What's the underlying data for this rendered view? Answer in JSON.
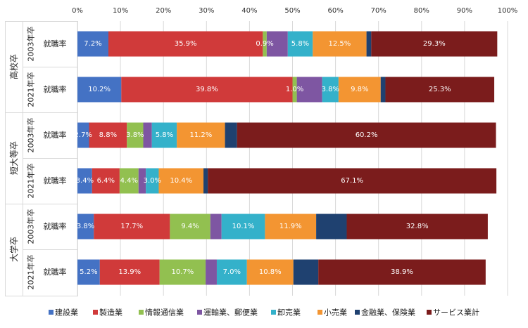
{
  "chart_data": {
    "type": "bar",
    "orientation": "horizontal",
    "stacked": true,
    "x_ticks": [
      "0%",
      "10%",
      "20%",
      "30%",
      "40%",
      "50%",
      "60%",
      "70%",
      "80%",
      "90%",
      "100%"
    ],
    "xlim": [
      0,
      100
    ],
    "grid": true,
    "legend_position": "bottom",
    "groups": [
      {
        "label": "高校卒",
        "rows": [
          {
            "year": "2003年卒",
            "label": "就職率",
            "values": [
              7.2,
              35.9,
              0.9,
              4.9,
              5.8,
              12.5,
              1.1,
              29.3
            ]
          },
          {
            "year": "2021年卒",
            "label": "就職率",
            "values": [
              10.2,
              39.8,
              1.0,
              5.9,
              3.8,
              9.8,
              1.1,
              25.3
            ]
          }
        ]
      },
      {
        "label": "短大等卒",
        "rows": [
          {
            "year": "2003年卒",
            "label": "就職率",
            "values": [
              2.7,
              8.8,
              3.8,
              2.0,
              5.8,
              11.2,
              2.8,
              60.2
            ]
          },
          {
            "year": "2021年卒",
            "label": "就職率",
            "values": [
              3.4,
              6.4,
              4.4,
              1.7,
              3.0,
              10.4,
              1.0,
              67.1
            ]
          }
        ]
      },
      {
        "label": "大学卒",
        "rows": [
          {
            "year": "2003年卒",
            "label": "就職率",
            "values": [
              3.8,
              17.7,
              9.4,
              2.6,
              10.1,
              11.9,
              7.1,
              32.8
            ]
          },
          {
            "year": "2021年卒",
            "label": "就職率",
            "values": [
              5.2,
              13.9,
              10.7,
              2.6,
              7.0,
              10.8,
              5.8,
              38.9
            ]
          }
        ]
      }
    ],
    "data_labels": [
      [
        [
          "7.2%",
          "35.9%",
          "0.9%",
          "",
          "5.8%",
          "12.5%",
          "",
          "29.3%"
        ],
        [
          "10.2%",
          "39.8%",
          "1.0%",
          "",
          "3.8%",
          "9.8%",
          "",
          "25.3%"
        ]
      ],
      [
        [
          "2.7%",
          "8.8%",
          "3.8%",
          "",
          "5.8%",
          "11.2%",
          "",
          "60.2%"
        ],
        [
          "3.4%",
          "6.4%",
          "4.4%",
          "",
          "3.0%",
          "10.4%",
          "",
          "67.1%"
        ]
      ],
      [
        [
          "3.8%",
          "17.7%",
          "9.4%",
          "",
          "10.1%",
          "11.9%",
          "",
          "32.8%"
        ],
        [
          "5.2%",
          "13.9%",
          "10.7%",
          "",
          "7.0%",
          "10.8%",
          "",
          "38.9%"
        ]
      ]
    ],
    "series": [
      {
        "name": "建設業",
        "color": "#4472C4"
      },
      {
        "name": "製造業",
        "color": "#D03A3A"
      },
      {
        "name": "情報通信業",
        "color": "#92C050"
      },
      {
        "name": "運輸業、郵便業",
        "color": "#7E56A2"
      },
      {
        "name": "卸売業",
        "color": "#34B1CA"
      },
      {
        "name": "小売業",
        "color": "#F39532"
      },
      {
        "name": "金融業、保険業",
        "color": "#1F4170"
      },
      {
        "name": "サービス業計",
        "color": "#7B1C1C"
      }
    ]
  }
}
